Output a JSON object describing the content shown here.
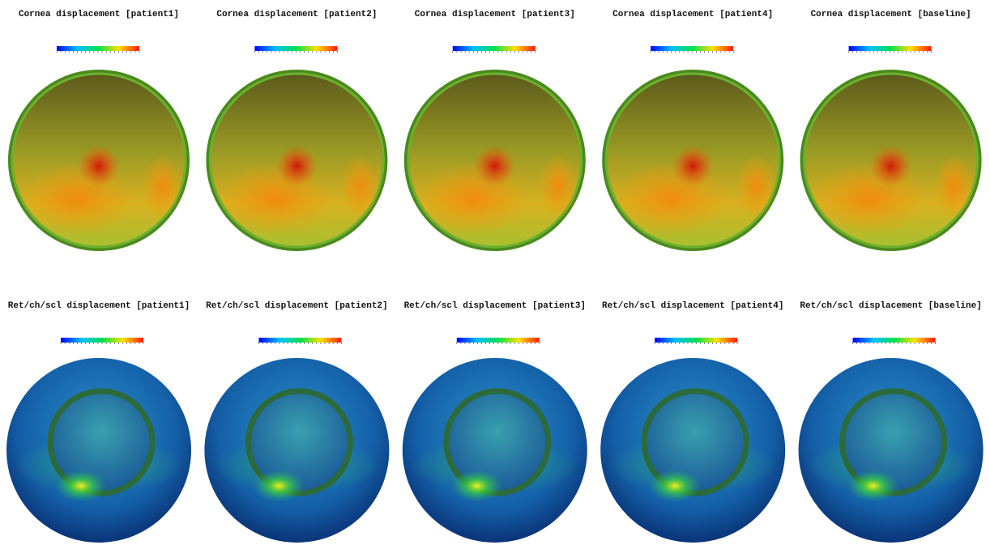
{
  "rows": [
    {
      "panels": [
        {
          "title": "Cornea displacement [patient1]"
        },
        {
          "title": "Cornea displacement [patient2]"
        },
        {
          "title": "Cornea displacement [patient3]"
        },
        {
          "title": "Cornea displacement [patient4]"
        },
        {
          "title": "Cornea displacement [baseline]"
        }
      ]
    },
    {
      "panels": [
        {
          "title": "Ret/ch/scl displacement [patient1]"
        },
        {
          "title": "Ret/ch/scl displacement [patient2]"
        },
        {
          "title": "Ret/ch/scl displacement [patient3]"
        },
        {
          "title": "Ret/ch/scl displacement [patient4]"
        },
        {
          "title": "Ret/ch/scl displacement [baseline]"
        }
      ]
    }
  ]
}
